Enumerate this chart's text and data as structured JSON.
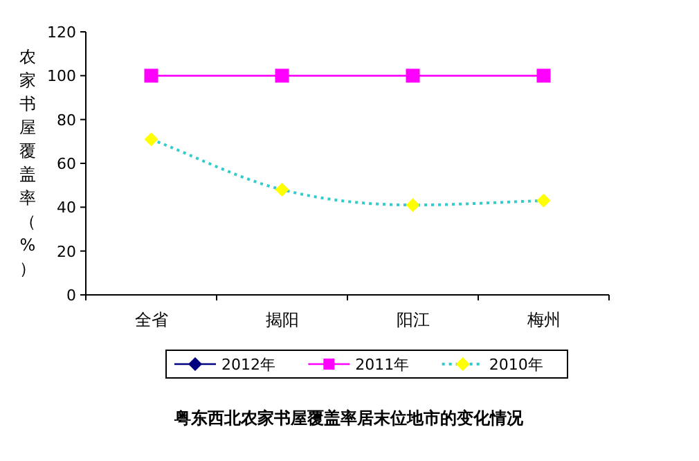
{
  "chart_data": {
    "type": "line",
    "title": "粤东西北农家书屋覆盖率居末位地市的变化情况",
    "ylabel": "农家书屋覆盖率（%）",
    "categories": [
      "全省",
      "揭阳",
      "阳江",
      "梅州"
    ],
    "ylim": [
      0,
      120
    ],
    "yticks": [
      0,
      20,
      40,
      60,
      80,
      100,
      120
    ],
    "grid": false,
    "legend": "bottom",
    "series": [
      {
        "name": "2012年",
        "color": "#000080",
        "values": [
          null,
          null,
          null,
          null
        ],
        "marker": "diamond",
        "line_style": "solid"
      },
      {
        "name": "2011年",
        "color": "#ff00ff",
        "values": [
          100,
          100,
          100,
          100
        ],
        "marker": "square",
        "line_style": "solid"
      },
      {
        "name": "2010年",
        "color": "#33cccc",
        "colors": [
          "#ffff00",
          "#ffff00",
          "#ffff00",
          "#ffff00"
        ],
        "values": [
          71,
          48,
          41,
          43
        ],
        "marker": "diamond",
        "line_style": "dotted"
      }
    ]
  }
}
